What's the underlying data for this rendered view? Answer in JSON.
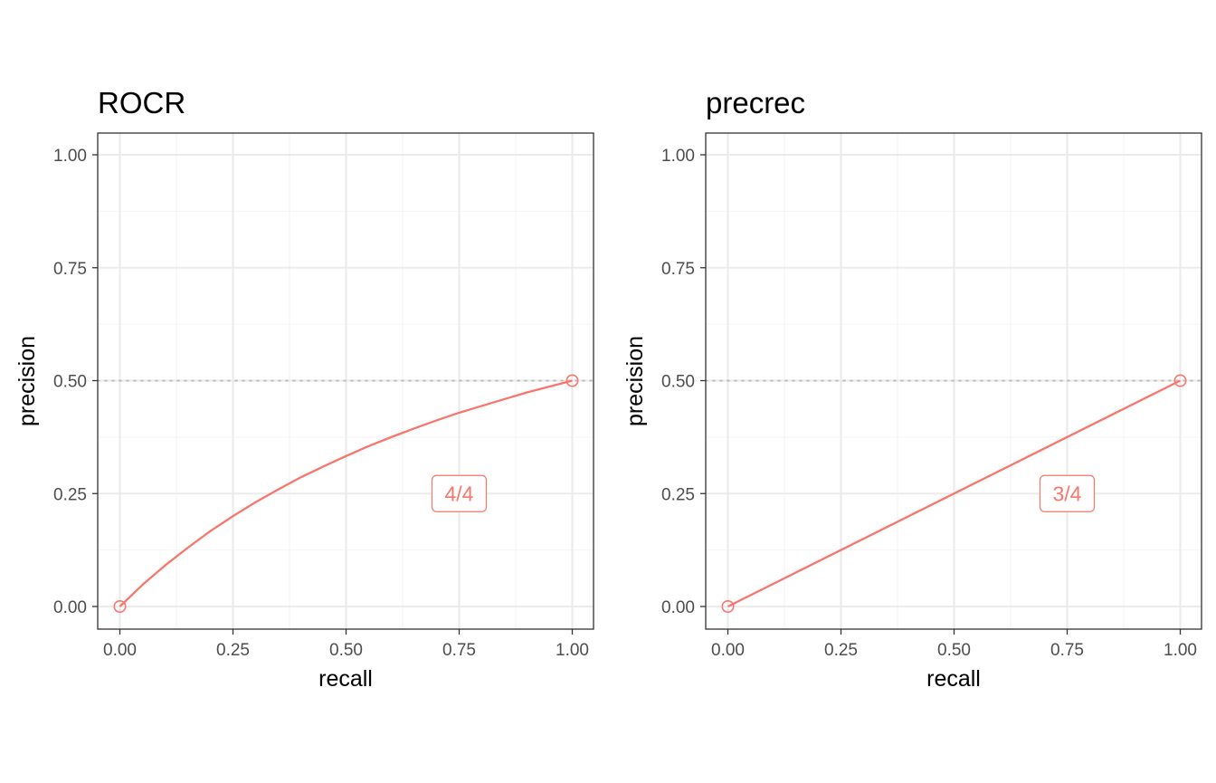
{
  "colors": {
    "series": "#F8766D",
    "grid_major": "#EBEBEB",
    "grid_minor": "#F4F4F4",
    "panel_border": "#333333",
    "reference_line": "#BEBEBE"
  },
  "chart_data": [
    {
      "type": "line",
      "title": "ROCR",
      "xlabel": "recall",
      "ylabel": "precision",
      "xlim": [
        0,
        1
      ],
      "ylim": [
        0,
        1
      ],
      "x_ticks": [
        "0.00",
        "0.25",
        "0.50",
        "0.75",
        "1.00"
      ],
      "y_ticks": [
        "0.00",
        "0.25",
        "0.50",
        "0.75",
        "1.00"
      ],
      "grid": true,
      "reference_line_y": 0.5,
      "series": [
        {
          "x": [
            0.0,
            0.05,
            0.1,
            0.15,
            0.2,
            0.25,
            0.3,
            0.35,
            0.4,
            0.45,
            0.5,
            0.55,
            0.6,
            0.65,
            0.7,
            0.75,
            0.8,
            0.85,
            0.9,
            0.95,
            1.0
          ],
          "y": [
            0.0,
            0.048,
            0.091,
            0.13,
            0.167,
            0.2,
            0.231,
            0.259,
            0.286,
            0.31,
            0.333,
            0.355,
            0.375,
            0.394,
            0.412,
            0.429,
            0.444,
            0.459,
            0.474,
            0.487,
            0.5
          ]
        }
      ],
      "points": [
        {
          "x": 0.0,
          "y": 0.0
        },
        {
          "x": 1.0,
          "y": 0.5
        }
      ],
      "annotation": {
        "text": "4/4",
        "x": 0.75,
        "y": 0.25
      }
    },
    {
      "type": "line",
      "title": "precrec",
      "xlabel": "recall",
      "ylabel": "precision",
      "xlim": [
        0,
        1
      ],
      "ylim": [
        0,
        1
      ],
      "x_ticks": [
        "0.00",
        "0.25",
        "0.50",
        "0.75",
        "1.00"
      ],
      "y_ticks": [
        "0.00",
        "0.25",
        "0.50",
        "0.75",
        "1.00"
      ],
      "grid": true,
      "reference_line_y": 0.5,
      "series": [
        {
          "x": [
            0.0,
            1.0
          ],
          "y": [
            0.0,
            0.5
          ]
        }
      ],
      "points": [
        {
          "x": 0.0,
          "y": 0.0
        },
        {
          "x": 1.0,
          "y": 0.5
        }
      ],
      "annotation": {
        "text": "3/4",
        "x": 0.75,
        "y": 0.25
      }
    }
  ]
}
